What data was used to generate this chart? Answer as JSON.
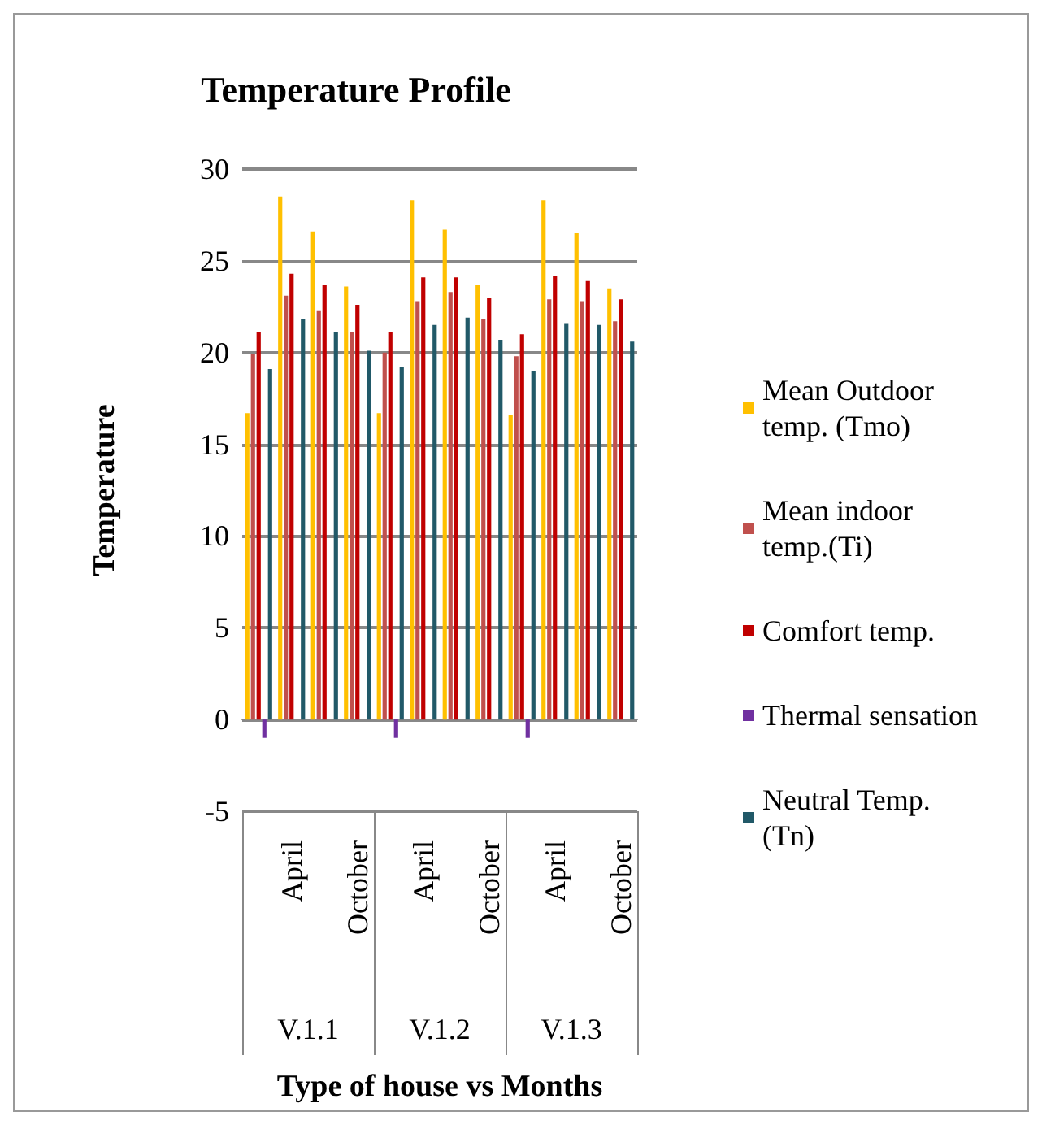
{
  "chart_data": {
    "type": "bar",
    "title": "Temperature Profile",
    "xlabel": "Type of house vs Months",
    "ylabel": "Temperature",
    "categories": [
      null,
      "April",
      null,
      "October",
      null,
      "April",
      null,
      "October",
      null,
      "April",
      null,
      "October"
    ],
    "annotations": [
      "V.1.1",
      "V.1.2",
      "V.1.3"
    ],
    "series": [
      {
        "name": "Mean Outdoor temp. (Tmo)",
        "color": "#ffc000",
        "values": [
          16.7,
          28.5,
          26.6,
          23.6,
          16.7,
          28.3,
          26.7,
          23.7,
          16.6,
          28.3,
          26.5,
          23.5
        ]
      },
      {
        "name": "Mean indoor temp.(Ti)",
        "color": "#c0504d",
        "values": [
          19.9,
          23.1,
          22.3,
          21.1,
          20.0,
          22.8,
          23.3,
          21.8,
          19.8,
          22.9,
          22.8,
          21.7
        ]
      },
      {
        "name": "Comfort temp.",
        "color": "#c00000",
        "values": [
          21.1,
          24.3,
          23.7,
          22.6,
          21.1,
          24.1,
          24.1,
          23.0,
          21.0,
          24.2,
          23.9,
          22.9
        ]
      },
      {
        "name": "Thermal sensation",
        "color": "#7030a0",
        "values": [
          -1,
          0,
          0,
          0,
          -1,
          0,
          0,
          0,
          -1,
          0,
          0,
          0
        ]
      },
      {
        "name": "Neutral Temp. (Tn)",
        "color": "#215968",
        "values": [
          19.1,
          21.8,
          21.1,
          20.1,
          19.2,
          21.5,
          21.9,
          20.7,
          19.0,
          21.6,
          21.5,
          20.6
        ]
      }
    ],
    "ylim": [
      -5,
      30
    ],
    "yticks": [
      -5,
      0,
      5,
      10,
      15,
      20,
      25,
      30
    ],
    "grid": "y",
    "legend": "right"
  }
}
